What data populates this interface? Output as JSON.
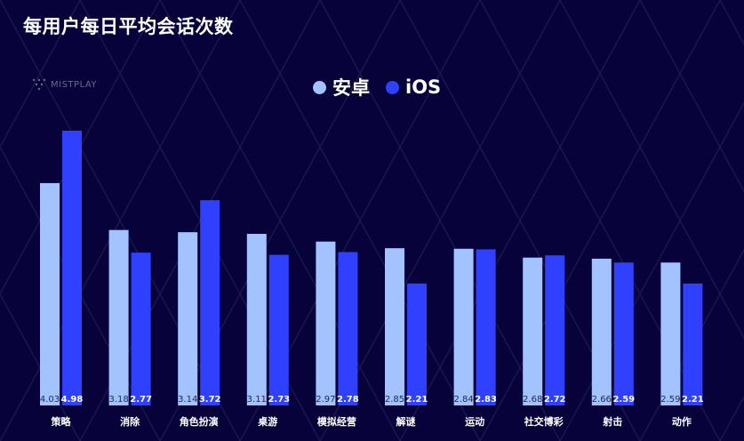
{
  "title": "每用户每日平均会话次数",
  "logo_text": "MISTPLAY",
  "colors": {
    "background": "#07033a",
    "android": "#a3c3ff",
    "ios": "#3040ff"
  },
  "chart_data": {
    "type": "bar",
    "categories": [
      "策略",
      "消除",
      "角色扮演",
      "桌游",
      "模拟经营",
      "解谜",
      "运动",
      "社交博彩",
      "射击",
      "动作"
    ],
    "series": [
      {
        "name": "安卓",
        "values": [
          4.03,
          3.18,
          3.14,
          3.11,
          2.97,
          2.85,
          2.84,
          2.68,
          2.66,
          2.59
        ]
      },
      {
        "name": "iOS",
        "values": [
          4.98,
          2.77,
          3.72,
          2.73,
          2.78,
          2.21,
          2.83,
          2.72,
          2.59,
          2.21
        ]
      }
    ],
    "legend_position": "top-center",
    "grid": false
  }
}
